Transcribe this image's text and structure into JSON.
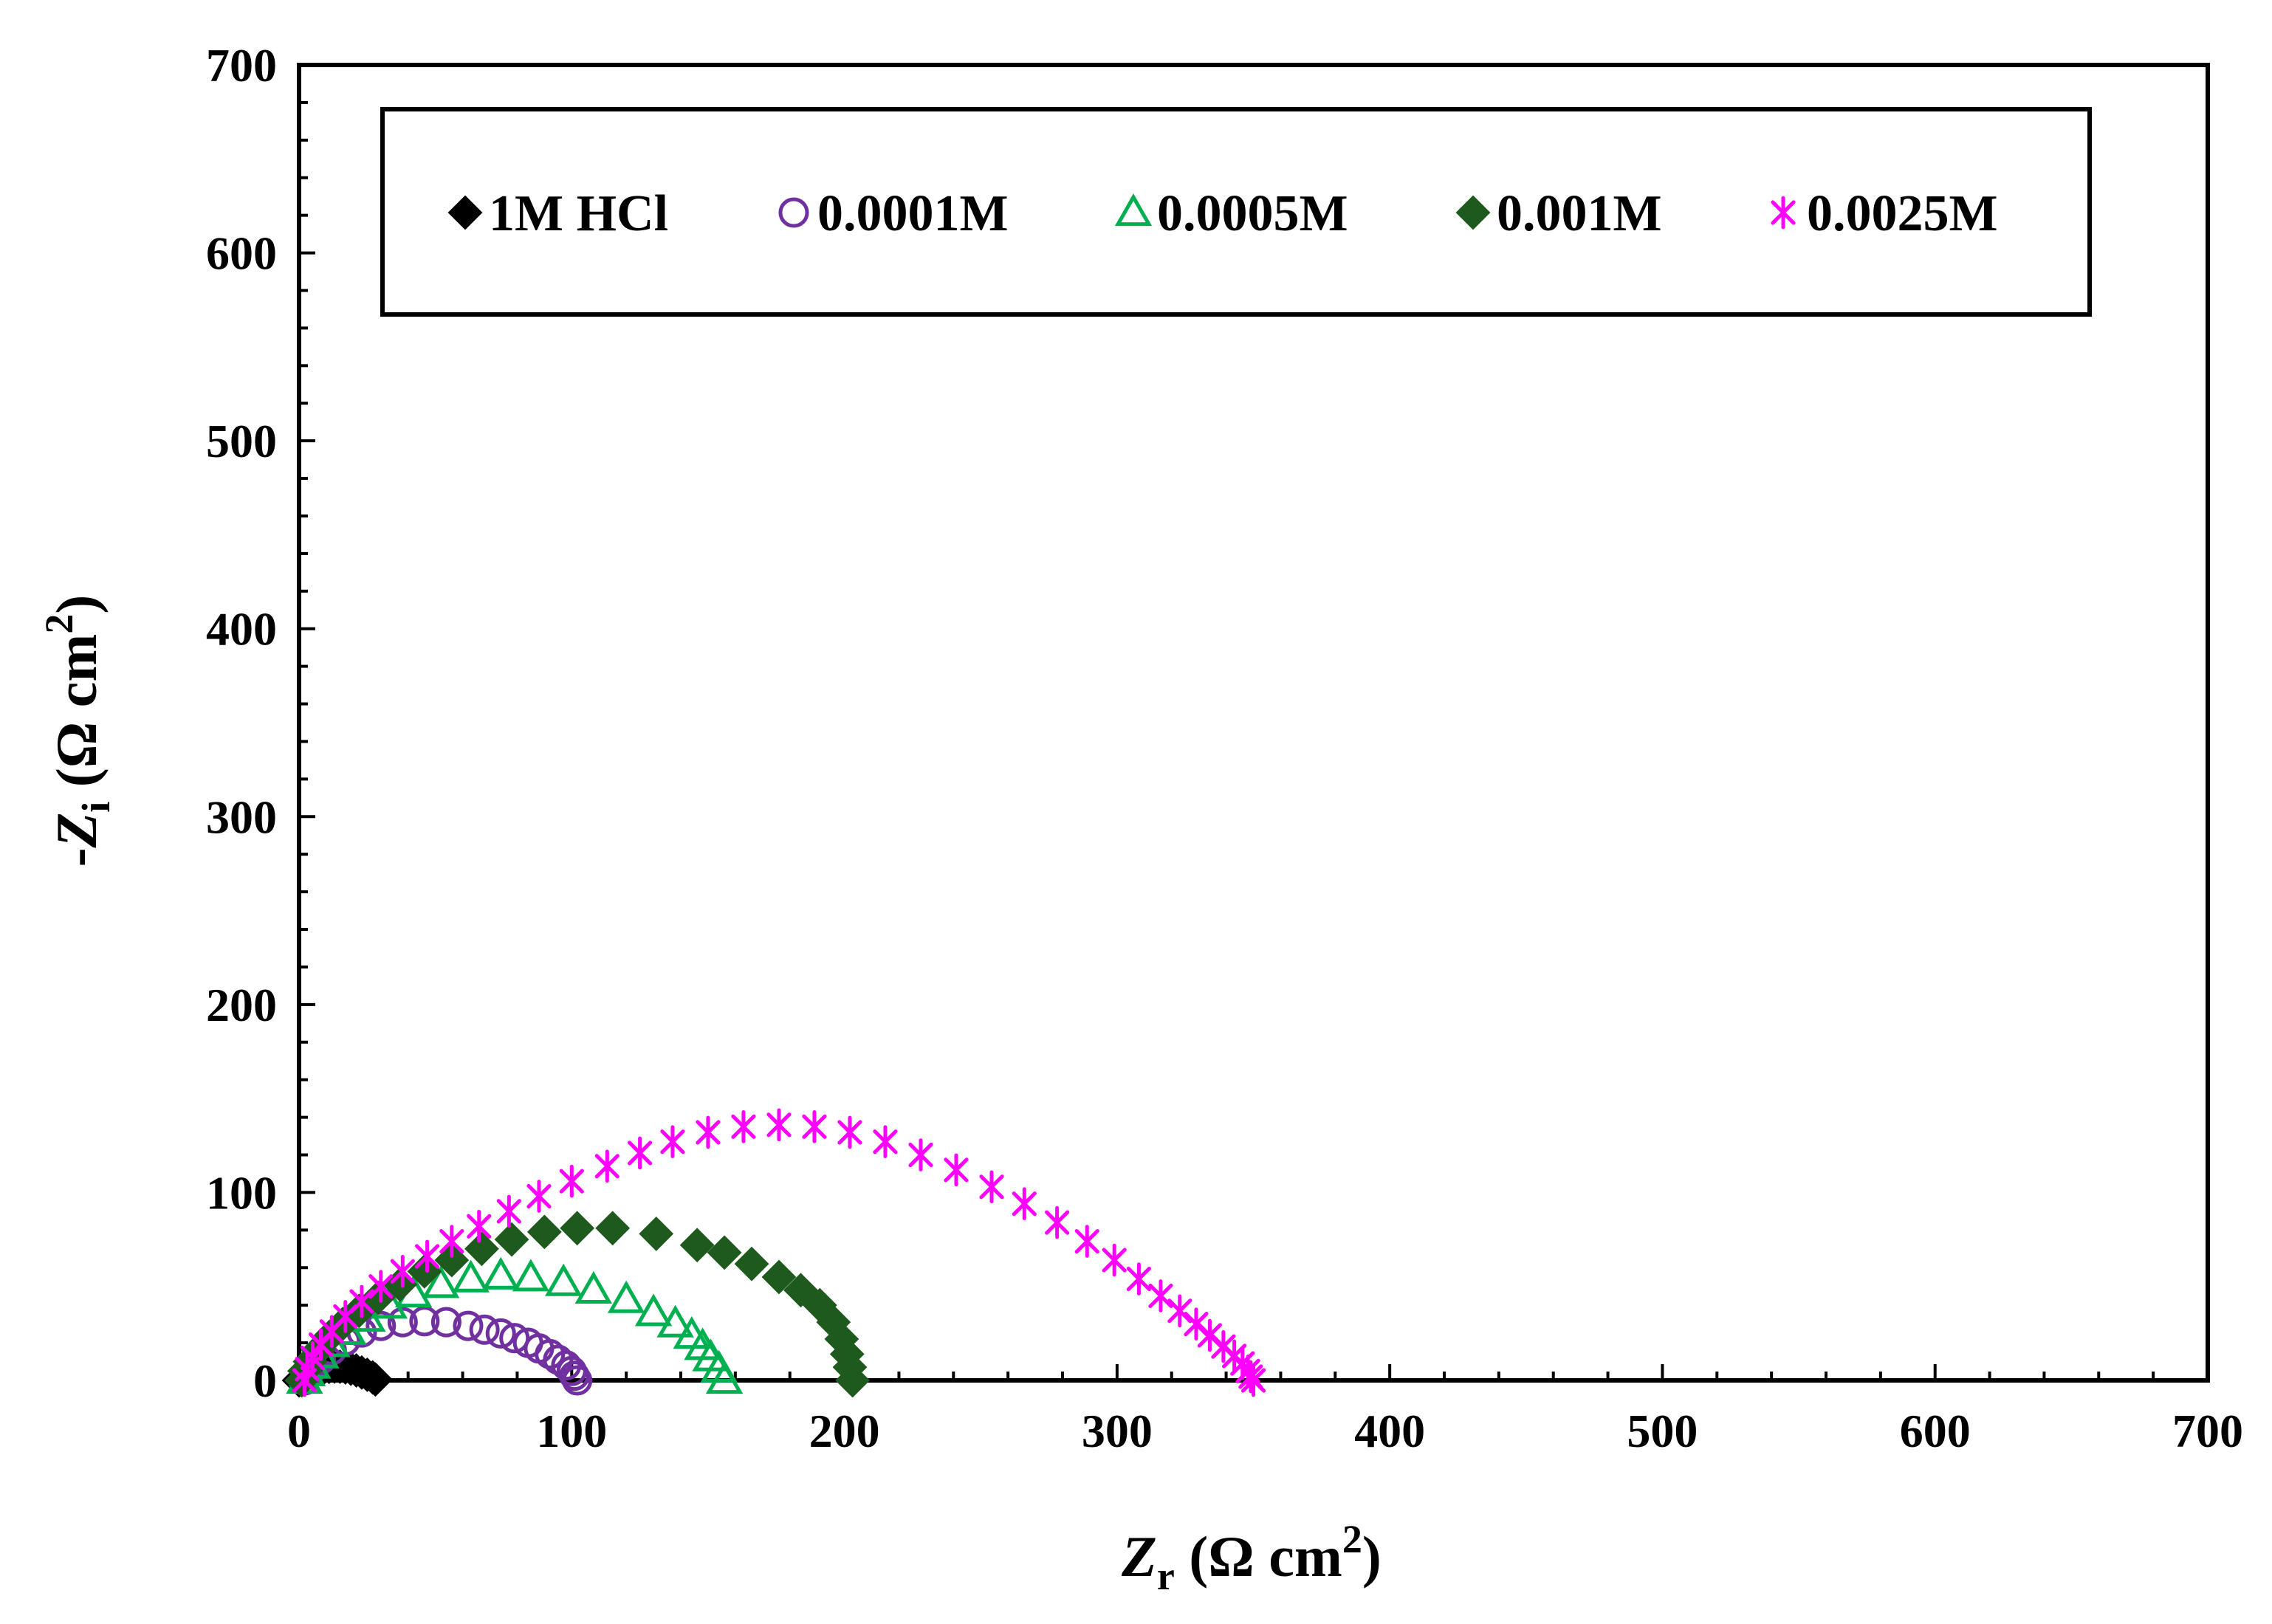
{
  "chart_data": {
    "type": "scatter",
    "xlabel": {
      "prefix": "",
      "var": "Z",
      "sub": "r",
      "unit_open": " (Ω cm",
      "sup": "2",
      "unit_close": ")"
    },
    "ylabel": {
      "prefix": "-",
      "var": "Z",
      "sub": "i",
      "unit_open": " (Ω cm",
      "sup": "2",
      "unit_close": ")"
    },
    "xlim": [
      0,
      700
    ],
    "ylim": [
      0,
      700
    ],
    "xticks": [
      "0",
      "100",
      "200",
      "300",
      "400",
      "500",
      "600",
      "700"
    ],
    "yticks": [
      "0",
      "100",
      "200",
      "300",
      "400",
      "500",
      "600",
      "700"
    ],
    "grid": false,
    "legend_position": "top-inside",
    "series": [
      {
        "name": "1M HCl",
        "marker": "diamond",
        "color": "#000000",
        "x": [
          0,
          0.5,
          1.5,
          3,
          5,
          7,
          9,
          11,
          13,
          15,
          17,
          19,
          21,
          23,
          25,
          27,
          28
        ],
        "y": [
          0,
          0.6,
          1.6,
          3,
          4.5,
          5.8,
          6.6,
          7.2,
          7.4,
          7.3,
          6.9,
          6.2,
          5.3,
          4.2,
          3,
          1.6,
          0.5
        ]
      },
      {
        "name": "0.0001M",
        "marker": "circle-open",
        "color": "#7030A0",
        "x": [
          2,
          3,
          5,
          8,
          12,
          17,
          23,
          30,
          38,
          46,
          54,
          62,
          68,
          74,
          79,
          84,
          88,
          92,
          95,
          98,
          100,
          101,
          102
        ],
        "y": [
          0,
          3,
          6.5,
          11,
          16,
          21,
          25.5,
          29,
          31,
          31.5,
          31,
          29,
          27,
          25,
          22.5,
          20,
          17,
          14,
          11,
          8,
          5,
          2.5,
          0
        ]
      },
      {
        "name": "0.0005M",
        "marker": "triangle-open",
        "color": "#00B050",
        "x": [
          2,
          3,
          5,
          8,
          12,
          18,
          25,
          33,
          42,
          52,
          63,
          74,
          85,
          97,
          108,
          120,
          130,
          138,
          144,
          148,
          151,
          154,
          156
        ],
        "y": [
          0,
          4,
          8,
          13.5,
          19.5,
          26,
          33,
          40,
          46,
          51,
          54,
          55.5,
          54.5,
          52,
          48,
          43,
          36,
          30,
          24,
          18,
          12,
          6,
          0
        ]
      },
      {
        "name": "0.001M",
        "marker": "diamond",
        "color": "#1E5A1E",
        "x": [
          1,
          2,
          4,
          7,
          11,
          16,
          22,
          29,
          37,
          46,
          56,
          67,
          78,
          90,
          102,
          115,
          131,
          146,
          156,
          166,
          176,
          184,
          191,
          196,
          199,
          201,
          202,
          203
        ],
        "y": [
          0,
          5,
          10,
          16,
          23,
          30,
          37,
          44,
          51,
          58,
          64,
          70,
          75,
          79,
          81,
          81,
          78,
          72,
          68,
          62,
          55,
          48,
          40,
          31,
          22,
          14,
          7,
          0
        ]
      },
      {
        "name": "0.0025M",
        "marker": "star",
        "color": "#FF00FF",
        "x": [
          2,
          3,
          5,
          8,
          12,
          17,
          23,
          30,
          38,
          47,
          56,
          66,
          77,
          88,
          100,
          113,
          125,
          137,
          150,
          163,
          176,
          189,
          202,
          215,
          228,
          241,
          254,
          266,
          278,
          289,
          299,
          308,
          316,
          323,
          329,
          334,
          339,
          343,
          346,
          348,
          349,
          350
        ],
        "y": [
          0,
          6,
          12,
          19,
          26,
          34,
          42,
          50,
          58,
          66,
          74,
          82,
          90,
          98,
          106,
          114,
          121,
          127,
          132,
          135,
          136,
          135,
          132,
          127,
          120,
          112,
          103,
          94,
          84,
          74,
          64,
          54,
          45,
          37,
          30,
          24,
          18,
          13,
          9,
          5,
          2,
          0
        ]
      }
    ]
  }
}
